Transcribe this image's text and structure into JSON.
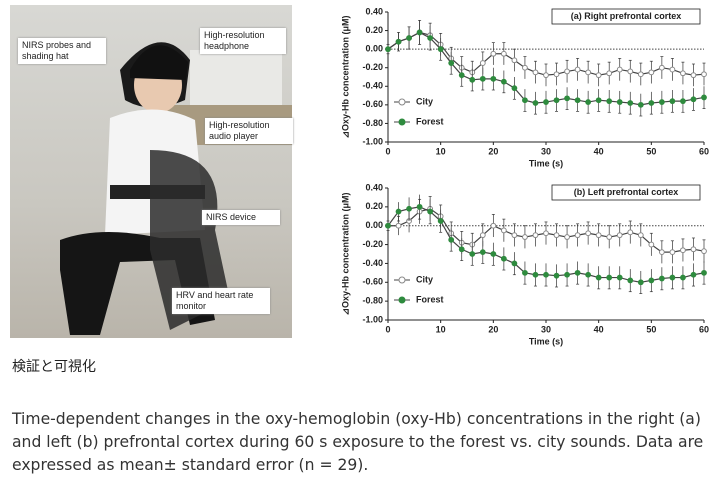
{
  "photo": {
    "labels": [
      "NIRS probes and shading hat",
      "High-resolution headphone",
      "High-resolution audio player",
      "NIRS device",
      "HRV and heart rate monitor"
    ]
  },
  "caption": {
    "heading": "検証と可視化",
    "text": "Time-dependent changes in the oxy-hemoglobin (oxy-Hb) concentrations in the right (a) and left (b) prefrontal cortex during 60 s exposure to the forest vs. city sounds. Data are expressed as mean± standard error (n = 29)."
  },
  "chart_data": [
    {
      "type": "line",
      "title": "(a) Right prefrontal cortex",
      "x_label": "Time (s)",
      "y_label": "⊿Oxy-Hb concentration (μM)",
      "reference_line": 0,
      "legend": "lower-left",
      "x": [
        0,
        2,
        4,
        6,
        8,
        10,
        12,
        14,
        16,
        18,
        20,
        22,
        24,
        26,
        28,
        30,
        32,
        34,
        36,
        38,
        40,
        42,
        44,
        46,
        48,
        50,
        52,
        54,
        56,
        58,
        60
      ],
      "series": [
        {
          "name": "City",
          "color": "#888888",
          "values": [
            0,
            0.08,
            0.12,
            0.18,
            0.15,
            0.05,
            -0.1,
            -0.2,
            -0.25,
            -0.15,
            -0.05,
            -0.05,
            -0.12,
            -0.2,
            -0.25,
            -0.28,
            -0.27,
            -0.24,
            -0.22,
            -0.25,
            -0.28,
            -0.26,
            -0.22,
            -0.24,
            -0.27,
            -0.25,
            -0.2,
            -0.22,
            -0.26,
            -0.28,
            -0.27
          ],
          "errors": [
            0.05,
            0.1,
            0.12,
            0.13,
            0.13,
            0.12,
            0.12,
            0.12,
            0.12,
            0.12,
            0.12,
            0.12,
            0.12,
            0.12,
            0.12,
            0.12,
            0.12,
            0.12,
            0.12,
            0.12,
            0.12,
            0.12,
            0.12,
            0.12,
            0.12,
            0.12,
            0.12,
            0.12,
            0.12,
            0.12,
            0.12
          ]
        },
        {
          "name": "Forest",
          "color": "#2e8b3e",
          "values": [
            0,
            0.08,
            0.12,
            0.18,
            0.12,
            0,
            -0.15,
            -0.28,
            -0.33,
            -0.32,
            -0.32,
            -0.35,
            -0.42,
            -0.55,
            -0.58,
            -0.57,
            -0.55,
            -0.53,
            -0.55,
            -0.57,
            -0.55,
            -0.56,
            -0.57,
            -0.58,
            -0.6,
            -0.58,
            -0.57,
            -0.56,
            -0.56,
            -0.54,
            -0.52
          ],
          "errors": [
            0.05,
            0.1,
            0.12,
            0.13,
            0.13,
            0.12,
            0.12,
            0.12,
            0.12,
            0.12,
            0.12,
            0.12,
            0.12,
            0.12,
            0.12,
            0.12,
            0.12,
            0.12,
            0.12,
            0.12,
            0.12,
            0.12,
            0.12,
            0.12,
            0.12,
            0.12,
            0.12,
            0.12,
            0.12,
            0.12,
            0.12
          ]
        }
      ],
      "xlim": [
        0,
        60
      ],
      "xticks": [
        0,
        10,
        20,
        30,
        40,
        50,
        60
      ],
      "ylim": [
        -1,
        0.4
      ],
      "yticks": [
        {
          "value": 0.4,
          "label": "0.40"
        },
        {
          "value": 0.2,
          "label": "0.20"
        },
        {
          "value": 0,
          "label": "0.00"
        },
        {
          "value": -0.2,
          "label": "-0.20"
        },
        {
          "value": -0.4,
          "label": "-0.40"
        },
        {
          "value": -0.6,
          "label": "-0.60"
        },
        {
          "value": -0.8,
          "label": "-0.80"
        },
        {
          "value": -1,
          "label": "-1.00"
        }
      ]
    },
    {
      "type": "line",
      "title": "(b) Left prefrontal cortex",
      "x_label": "Time (s)",
      "y_label": "⊿Oxy-Hb concentration (μM)",
      "reference_line": 0,
      "legend": "lower-left",
      "x": [
        0,
        2,
        4,
        6,
        8,
        10,
        12,
        14,
        16,
        18,
        20,
        22,
        24,
        26,
        28,
        30,
        32,
        34,
        36,
        38,
        40,
        42,
        44,
        46,
        48,
        50,
        52,
        54,
        56,
        58,
        60
      ],
      "series": [
        {
          "name": "City",
          "color": "#888888",
          "values": [
            0,
            0,
            0.05,
            0.15,
            0.18,
            0.1,
            -0.08,
            -0.18,
            -0.2,
            -0.1,
            0,
            -0.05,
            -0.1,
            -0.12,
            -0.1,
            -0.08,
            -0.1,
            -0.12,
            -0.1,
            -0.08,
            -0.1,
            -0.12,
            -0.1,
            -0.07,
            -0.1,
            -0.2,
            -0.28,
            -0.28,
            -0.26,
            -0.25,
            -0.27
          ],
          "errors": [
            0.05,
            0.1,
            0.12,
            0.13,
            0.13,
            0.12,
            0.12,
            0.12,
            0.12,
            0.12,
            0.12,
            0.12,
            0.12,
            0.12,
            0.12,
            0.12,
            0.12,
            0.12,
            0.12,
            0.12,
            0.12,
            0.12,
            0.12,
            0.12,
            0.12,
            0.12,
            0.12,
            0.12,
            0.12,
            0.12,
            0.12
          ]
        },
        {
          "name": "Forest",
          "color": "#2e8b3e",
          "values": [
            0,
            0.15,
            0.18,
            0.2,
            0.15,
            0.05,
            -0.15,
            -0.25,
            -0.3,
            -0.28,
            -0.3,
            -0.35,
            -0.4,
            -0.5,
            -0.52,
            -0.52,
            -0.53,
            -0.52,
            -0.5,
            -0.52,
            -0.55,
            -0.55,
            -0.55,
            -0.58,
            -0.6,
            -0.58,
            -0.56,
            -0.55,
            -0.55,
            -0.52,
            -0.5
          ],
          "errors": [
            0.05,
            0.1,
            0.12,
            0.13,
            0.13,
            0.12,
            0.12,
            0.12,
            0.12,
            0.12,
            0.12,
            0.12,
            0.12,
            0.12,
            0.12,
            0.12,
            0.12,
            0.12,
            0.12,
            0.12,
            0.12,
            0.12,
            0.12,
            0.12,
            0.12,
            0.12,
            0.12,
            0.12,
            0.12,
            0.12,
            0.12
          ]
        }
      ],
      "xlim": [
        0,
        60
      ],
      "xticks": [
        0,
        10,
        20,
        30,
        40,
        50,
        60
      ],
      "ylim": [
        -1,
        0.4
      ],
      "yticks": [
        {
          "value": 0.4,
          "label": "0.40"
        },
        {
          "value": 0.2,
          "label": "0.20"
        },
        {
          "value": 0,
          "label": "0.00"
        },
        {
          "value": -0.2,
          "label": "-0.20"
        },
        {
          "value": -0.4,
          "label": "-0.40"
        },
        {
          "value": -0.6,
          "label": "-0.60"
        },
        {
          "value": -0.8,
          "label": "-0.80"
        },
        {
          "value": -1,
          "label": "-1.00"
        }
      ]
    }
  ]
}
